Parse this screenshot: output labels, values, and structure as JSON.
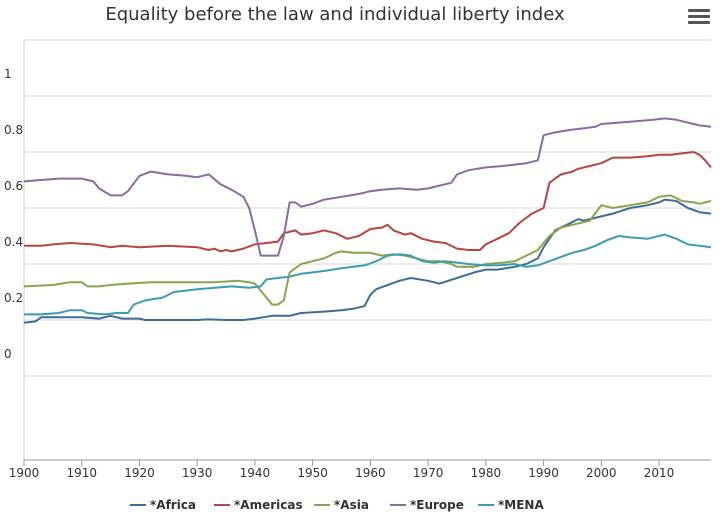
{
  "chart_data": {
    "type": "line",
    "title": "Equality before the law and individual liberty index",
    "xlabel": "",
    "ylabel": "",
    "xlim": [
      1900,
      2019
    ],
    "ylim": [
      -0.3,
      1.2
    ],
    "x_ticks": [
      1900,
      1910,
      1920,
      1930,
      1940,
      1950,
      1960,
      1970,
      1980,
      1990,
      2000,
      2010
    ],
    "x_tick_labels": [
      "1900",
      "1910",
      "1920",
      "1930",
      "1940",
      "1950",
      "1960",
      "1970",
      "1980",
      "1990",
      "2000",
      "2010"
    ],
    "y_ticks": [
      0,
      0.2,
      0.4,
      0.6,
      0.8,
      1
    ],
    "y_tick_labels": [
      "0",
      "0.2",
      "0.4",
      "0.6",
      "0.8",
      "1"
    ],
    "grid": "horizontal",
    "legend_position": "bottom",
    "series": [
      {
        "name": "*Africa",
        "color": "#3d6d9b",
        "points": [
          [
            1900,
            0.19
          ],
          [
            1902,
            0.195
          ],
          [
            1903,
            0.21
          ],
          [
            1910,
            0.21
          ],
          [
            1913,
            0.205
          ],
          [
            1915,
            0.215
          ],
          [
            1917,
            0.205
          ],
          [
            1920,
            0.205
          ],
          [
            1921,
            0.2
          ],
          [
            1925,
            0.2
          ],
          [
            1930,
            0.2
          ],
          [
            1932,
            0.202
          ],
          [
            1935,
            0.2
          ],
          [
            1938,
            0.2
          ],
          [
            1940,
            0.205
          ],
          [
            1943,
            0.215
          ],
          [
            1946,
            0.215
          ],
          [
            1948,
            0.225
          ],
          [
            1952,
            0.23
          ],
          [
            1955,
            0.235
          ],
          [
            1957,
            0.24
          ],
          [
            1959,
            0.25
          ],
          [
            1960,
            0.29
          ],
          [
            1961,
            0.31
          ],
          [
            1963,
            0.325
          ],
          [
            1965,
            0.34
          ],
          [
            1967,
            0.35
          ],
          [
            1970,
            0.34
          ],
          [
            1972,
            0.33
          ],
          [
            1975,
            0.35
          ],
          [
            1978,
            0.37
          ],
          [
            1980,
            0.38
          ],
          [
            1982,
            0.38
          ],
          [
            1985,
            0.39
          ],
          [
            1987,
            0.4
          ],
          [
            1989,
            0.42
          ],
          [
            1990,
            0.46
          ],
          [
            1992,
            0.52
          ],
          [
            1994,
            0.54
          ],
          [
            1996,
            0.56
          ],
          [
            1997,
            0.555
          ],
          [
            2000,
            0.57
          ],
          [
            2002,
            0.58
          ],
          [
            2005,
            0.6
          ],
          [
            2008,
            0.61
          ],
          [
            2010,
            0.62
          ],
          [
            2011,
            0.63
          ],
          [
            2013,
            0.625
          ],
          [
            2015,
            0.6
          ],
          [
            2017,
            0.585
          ],
          [
            2019,
            0.58
          ]
        ]
      },
      {
        "name": "*Americas",
        "color": "#b8453b",
        "points": [
          [
            1900,
            0.465
          ],
          [
            1903,
            0.465
          ],
          [
            1905,
            0.47
          ],
          [
            1908,
            0.475
          ],
          [
            1912,
            0.47
          ],
          [
            1915,
            0.46
          ],
          [
            1917,
            0.465
          ],
          [
            1920,
            0.46
          ],
          [
            1925,
            0.465
          ],
          [
            1930,
            0.46
          ],
          [
            1932,
            0.45
          ],
          [
            1933,
            0.455
          ],
          [
            1934,
            0.445
          ],
          [
            1935,
            0.45
          ],
          [
            1936,
            0.445
          ],
          [
            1938,
            0.455
          ],
          [
            1940,
            0.47
          ],
          [
            1942,
            0.475
          ],
          [
            1944,
            0.48
          ],
          [
            1945,
            0.51
          ],
          [
            1947,
            0.52
          ],
          [
            1948,
            0.505
          ],
          [
            1950,
            0.51
          ],
          [
            1952,
            0.52
          ],
          [
            1954,
            0.51
          ],
          [
            1956,
            0.49
          ],
          [
            1958,
            0.5
          ],
          [
            1960,
            0.525
          ],
          [
            1962,
            0.53
          ],
          [
            1963,
            0.54
          ],
          [
            1964,
            0.52
          ],
          [
            1966,
            0.505
          ],
          [
            1967,
            0.51
          ],
          [
            1969,
            0.49
          ],
          [
            1971,
            0.48
          ],
          [
            1973,
            0.475
          ],
          [
            1975,
            0.455
          ],
          [
            1977,
            0.45
          ],
          [
            1979,
            0.45
          ],
          [
            1980,
            0.47
          ],
          [
            1982,
            0.49
          ],
          [
            1984,
            0.51
          ],
          [
            1986,
            0.55
          ],
          [
            1988,
            0.58
          ],
          [
            1990,
            0.6
          ],
          [
            1991,
            0.69
          ],
          [
            1993,
            0.72
          ],
          [
            1995,
            0.73
          ],
          [
            1996,
            0.74
          ],
          [
            1998,
            0.75
          ],
          [
            2000,
            0.76
          ],
          [
            2002,
            0.78
          ],
          [
            2005,
            0.78
          ],
          [
            2008,
            0.785
          ],
          [
            2010,
            0.79
          ],
          [
            2012,
            0.79
          ],
          [
            2014,
            0.795
          ],
          [
            2016,
            0.8
          ],
          [
            2017,
            0.79
          ],
          [
            2018,
            0.77
          ],
          [
            2019,
            0.745
          ]
        ]
      },
      {
        "name": "*Asia",
        "color": "#8aa44a",
        "points": [
          [
            1900,
            0.32
          ],
          [
            1905,
            0.325
          ],
          [
            1908,
            0.335
          ],
          [
            1910,
            0.335
          ],
          [
            1911,
            0.32
          ],
          [
            1913,
            0.32
          ],
          [
            1915,
            0.325
          ],
          [
            1918,
            0.33
          ],
          [
            1922,
            0.335
          ],
          [
            1928,
            0.335
          ],
          [
            1933,
            0.335
          ],
          [
            1937,
            0.34
          ],
          [
            1939,
            0.335
          ],
          [
            1940,
            0.33
          ],
          [
            1942,
            0.28
          ],
          [
            1943,
            0.255
          ],
          [
            1944,
            0.255
          ],
          [
            1945,
            0.27
          ],
          [
            1946,
            0.37
          ],
          [
            1948,
            0.4
          ],
          [
            1950,
            0.41
          ],
          [
            1952,
            0.42
          ],
          [
            1954,
            0.44
          ],
          [
            1955,
            0.445
          ],
          [
            1957,
            0.44
          ],
          [
            1960,
            0.44
          ],
          [
            1962,
            0.43
          ],
          [
            1964,
            0.435
          ],
          [
            1966,
            0.43
          ],
          [
            1968,
            0.42
          ],
          [
            1970,
            0.41
          ],
          [
            1972,
            0.41
          ],
          [
            1974,
            0.4
          ],
          [
            1975,
            0.39
          ],
          [
            1978,
            0.39
          ],
          [
            1980,
            0.4
          ],
          [
            1983,
            0.405
          ],
          [
            1985,
            0.41
          ],
          [
            1987,
            0.43
          ],
          [
            1989,
            0.45
          ],
          [
            1991,
            0.5
          ],
          [
            1993,
            0.53
          ],
          [
            1995,
            0.54
          ],
          [
            1998,
            0.555
          ],
          [
            2000,
            0.61
          ],
          [
            2002,
            0.6
          ],
          [
            2005,
            0.61
          ],
          [
            2008,
            0.62
          ],
          [
            2010,
            0.64
          ],
          [
            2012,
            0.645
          ],
          [
            2014,
            0.625
          ],
          [
            2016,
            0.62
          ],
          [
            2017,
            0.615
          ],
          [
            2018,
            0.62
          ],
          [
            2019,
            0.625
          ]
        ]
      },
      {
        "name": "*Europe",
        "color": "#8a6ba6",
        "points": [
          [
            1900,
            0.695
          ],
          [
            1903,
            0.7
          ],
          [
            1906,
            0.705
          ],
          [
            1910,
            0.705
          ],
          [
            1912,
            0.695
          ],
          [
            1913,
            0.67
          ],
          [
            1915,
            0.645
          ],
          [
            1917,
            0.645
          ],
          [
            1918,
            0.66
          ],
          [
            1920,
            0.715
          ],
          [
            1922,
            0.73
          ],
          [
            1925,
            0.72
          ],
          [
            1928,
            0.715
          ],
          [
            1930,
            0.71
          ],
          [
            1932,
            0.72
          ],
          [
            1934,
            0.685
          ],
          [
            1936,
            0.665
          ],
          [
            1938,
            0.64
          ],
          [
            1939,
            0.6
          ],
          [
            1940,
            0.52
          ],
          [
            1941,
            0.43
          ],
          [
            1943,
            0.43
          ],
          [
            1944,
            0.43
          ],
          [
            1945,
            0.5
          ],
          [
            1946,
            0.62
          ],
          [
            1947,
            0.62
          ],
          [
            1948,
            0.605
          ],
          [
            1950,
            0.615
          ],
          [
            1952,
            0.63
          ],
          [
            1955,
            0.64
          ],
          [
            1958,
            0.65
          ],
          [
            1960,
            0.66
          ],
          [
            1962,
            0.665
          ],
          [
            1965,
            0.67
          ],
          [
            1968,
            0.665
          ],
          [
            1970,
            0.67
          ],
          [
            1972,
            0.68
          ],
          [
            1974,
            0.69
          ],
          [
            1975,
            0.72
          ],
          [
            1977,
            0.735
          ],
          [
            1980,
            0.745
          ],
          [
            1983,
            0.75
          ],
          [
            1985,
            0.755
          ],
          [
            1987,
            0.76
          ],
          [
            1989,
            0.77
          ],
          [
            1990,
            0.86
          ],
          [
            1992,
            0.87
          ],
          [
            1995,
            0.88
          ],
          [
            1997,
            0.885
          ],
          [
            1999,
            0.89
          ],
          [
            2000,
            0.9
          ],
          [
            2003,
            0.905
          ],
          [
            2006,
            0.91
          ],
          [
            2009,
            0.915
          ],
          [
            2011,
            0.92
          ],
          [
            2013,
            0.915
          ],
          [
            2015,
            0.905
          ],
          [
            2017,
            0.895
          ],
          [
            2019,
            0.89
          ]
        ]
      },
      {
        "name": "*MENA",
        "color": "#3d9db0",
        "points": [
          [
            1900,
            0.22
          ],
          [
            1903,
            0.22
          ],
          [
            1906,
            0.225
          ],
          [
            1908,
            0.235
          ],
          [
            1910,
            0.235
          ],
          [
            1911,
            0.225
          ],
          [
            1914,
            0.22
          ],
          [
            1916,
            0.225
          ],
          [
            1918,
            0.225
          ],
          [
            1919,
            0.255
          ],
          [
            1921,
            0.27
          ],
          [
            1924,
            0.28
          ],
          [
            1926,
            0.3
          ],
          [
            1928,
            0.305
          ],
          [
            1930,
            0.31
          ],
          [
            1933,
            0.315
          ],
          [
            1936,
            0.32
          ],
          [
            1939,
            0.315
          ],
          [
            1941,
            0.32
          ],
          [
            1942,
            0.345
          ],
          [
            1944,
            0.35
          ],
          [
            1946,
            0.355
          ],
          [
            1948,
            0.365
          ],
          [
            1950,
            0.37
          ],
          [
            1952,
            0.375
          ],
          [
            1955,
            0.385
          ],
          [
            1957,
            0.39
          ],
          [
            1959,
            0.395
          ],
          [
            1961,
            0.41
          ],
          [
            1963,
            0.43
          ],
          [
            1965,
            0.435
          ],
          [
            1967,
            0.43
          ],
          [
            1969,
            0.41
          ],
          [
            1971,
            0.405
          ],
          [
            1973,
            0.41
          ],
          [
            1975,
            0.405
          ],
          [
            1977,
            0.4
          ],
          [
            1980,
            0.395
          ],
          [
            1982,
            0.395
          ],
          [
            1985,
            0.4
          ],
          [
            1987,
            0.39
          ],
          [
            1989,
            0.395
          ],
          [
            1991,
            0.41
          ],
          [
            1993,
            0.425
          ],
          [
            1995,
            0.44
          ],
          [
            1997,
            0.45
          ],
          [
            1999,
            0.465
          ],
          [
            2001,
            0.485
          ],
          [
            2003,
            0.5
          ],
          [
            2005,
            0.495
          ],
          [
            2008,
            0.49
          ],
          [
            2010,
            0.5
          ],
          [
            2011,
            0.505
          ],
          [
            2013,
            0.49
          ],
          [
            2015,
            0.47
          ],
          [
            2017,
            0.465
          ],
          [
            2019,
            0.46
          ]
        ]
      }
    ]
  }
}
